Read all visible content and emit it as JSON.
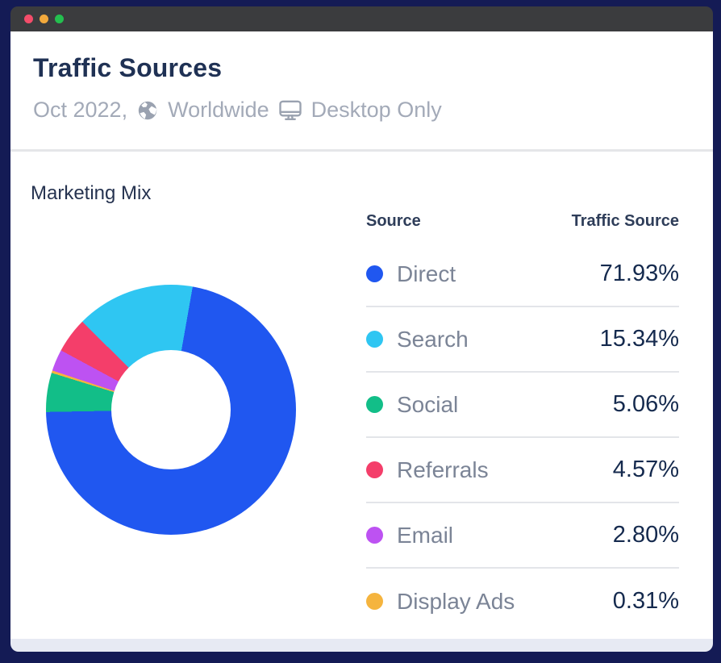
{
  "window": {
    "titlebar": {
      "traffic_lights": [
        "#f44d6a",
        "#f2a93c",
        "#24bf4f"
      ]
    }
  },
  "header": {
    "title": "Traffic Sources",
    "subtitle": {
      "date": "Oct 2022,",
      "region": "Worldwide",
      "device": "Desktop Only"
    }
  },
  "section": {
    "title": "Marketing Mix"
  },
  "table": {
    "columns": [
      "Source",
      "Traffic Source"
    ],
    "rows": [
      {
        "label": "Direct",
        "value": "71.93%",
        "color": "#2057f0"
      },
      {
        "label": "Search",
        "value": "15.34%",
        "color": "#2fc6f2"
      },
      {
        "label": "Social",
        "value": "5.06%",
        "color": "#12be88"
      },
      {
        "label": "Referrals",
        "value": "4.57%",
        "color": "#f43e6a"
      },
      {
        "label": "Email",
        "value": "2.80%",
        "color": "#bd52f2"
      },
      {
        "label": "Display Ads",
        "value": "0.31%",
        "color": "#f5b43e"
      }
    ]
  },
  "chart_data": {
    "type": "pie",
    "donut": true,
    "title": "Marketing Mix",
    "categories": [
      "Direct",
      "Search",
      "Social",
      "Referrals",
      "Email",
      "Display Ads"
    ],
    "values": [
      71.93,
      15.34,
      5.06,
      4.57,
      2.8,
      0.31
    ],
    "colors": [
      "#2057f0",
      "#2fc6f2",
      "#12be88",
      "#f43e6a",
      "#bd52f2",
      "#f5b43e"
    ],
    "unit": "%",
    "start_angle_deg": 10,
    "draw_order": [
      "Direct",
      "Social",
      "Display Ads",
      "Email",
      "Referrals",
      "Search"
    ],
    "inner_radius_ratio": 0.477,
    "legend_position": "right",
    "legend_columns": [
      "Source",
      "Traffic Source"
    ]
  }
}
